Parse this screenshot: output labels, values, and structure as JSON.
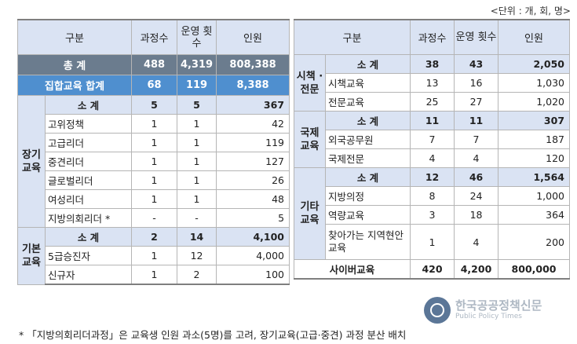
{
  "unit_label": "<단위 : 개, 회, 명>",
  "headers": {
    "category": "구분",
    "courses": "과정수",
    "sessions": "운영 횟수",
    "people": "인원"
  },
  "left": {
    "total": {
      "label": "총 계",
      "courses": "488",
      "sessions": "4,319",
      "people": "808,388"
    },
    "group_total": {
      "label": "집합교육 합계",
      "courses": "68",
      "sessions": "119",
      "people": "8,388"
    },
    "long_term": {
      "label": "장기 교육",
      "subtotal": {
        "label": "소 계",
        "courses": "5",
        "sessions": "5",
        "people": "367"
      },
      "rows": [
        {
          "name": "고위정책",
          "courses": "1",
          "sessions": "1",
          "people": "42"
        },
        {
          "name": "고급리더",
          "courses": "1",
          "sessions": "1",
          "people": "119"
        },
        {
          "name": "중견리더",
          "courses": "1",
          "sessions": "1",
          "people": "127"
        },
        {
          "name": "글로벌리더",
          "courses": "1",
          "sessions": "1",
          "people": "26"
        },
        {
          "name": "여성리더",
          "courses": "1",
          "sessions": "1",
          "people": "48"
        },
        {
          "name": "지방의회리더 *",
          "courses": "-",
          "sessions": "-",
          "people": "5"
        }
      ]
    },
    "basic": {
      "label": "기본 교육",
      "subtotal": {
        "label": "소 계",
        "courses": "2",
        "sessions": "14",
        "people": "4,100"
      },
      "rows": [
        {
          "name": "5급승진자",
          "courses": "1",
          "sessions": "12",
          "people": "4,000"
        },
        {
          "name": "신규자",
          "courses": "1",
          "sessions": "2",
          "people": "100"
        }
      ]
    }
  },
  "right": {
    "policy": {
      "label": "시책 · 전문",
      "subtotal": {
        "label": "소 계",
        "courses": "38",
        "sessions": "43",
        "people": "2,050"
      },
      "rows": [
        {
          "name": "시책교육",
          "courses": "13",
          "sessions": "16",
          "people": "1,030"
        },
        {
          "name": "전문교육",
          "courses": "25",
          "sessions": "27",
          "people": "1,020"
        }
      ]
    },
    "international": {
      "label": "국제 교육",
      "subtotal": {
        "label": "소 계",
        "courses": "11",
        "sessions": "11",
        "people": "307"
      },
      "rows": [
        {
          "name": "외국공무원",
          "courses": "7",
          "sessions": "7",
          "people": "187"
        },
        {
          "name": "국제전문",
          "courses": "4",
          "sessions": "4",
          "people": "120"
        }
      ]
    },
    "other": {
      "label": "기타 교육",
      "subtotal": {
        "label": "소 계",
        "courses": "12",
        "sessions": "46",
        "people": "1,564"
      },
      "rows": [
        {
          "name": "지방의정",
          "courses": "8",
          "sessions": "24",
          "people": "1,000"
        },
        {
          "name": "역량교육",
          "courses": "3",
          "sessions": "18",
          "people": "364"
        },
        {
          "name": "찾아가는 지역현안교육",
          "courses": "1",
          "sessions": "4",
          "people": "200"
        }
      ]
    },
    "cyber": {
      "label": "사이버교육",
      "courses": "420",
      "sessions": "4,200",
      "people": "800,000"
    }
  },
  "footnote": "* 「지방의회리더과정」은 교육생 인원 과소(5명)를 고려, 장기교육(고급·중견) 과정 분산 배치",
  "watermark": {
    "text": "한국공공정책신문",
    "sub": "Public Policy Times"
  }
}
